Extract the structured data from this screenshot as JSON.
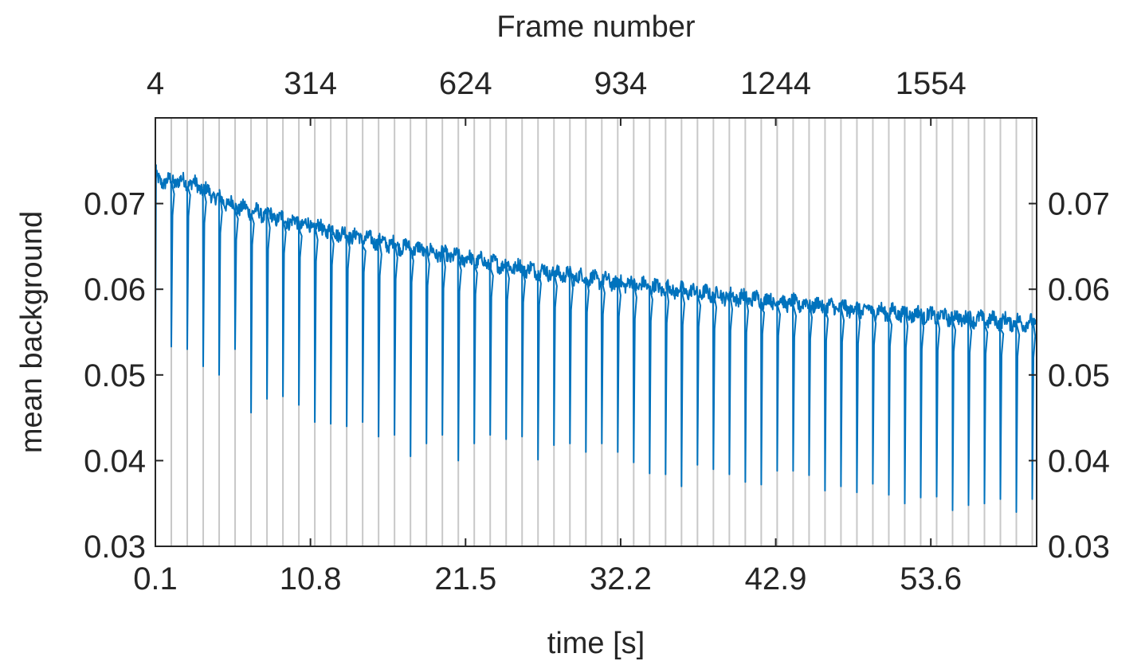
{
  "chart_data": {
    "type": "line",
    "title": "",
    "xlabel": "time [s]",
    "ylabel": "mean background",
    "top_xlabel": "Frame number",
    "xlim": [
      0.1,
      60.9
    ],
    "ylim": [
      0.03,
      0.08
    ],
    "x_ticks": [
      0.1,
      10.8,
      21.5,
      32.2,
      42.9,
      53.6
    ],
    "x_tick_labels": [
      "0.1",
      "10.8",
      "21.5",
      "32.2",
      "42.9",
      "53.6"
    ],
    "top_x_ticks": [
      0.1,
      10.8,
      21.5,
      32.2,
      42.9,
      53.6
    ],
    "top_x_tick_labels": [
      "4",
      "314",
      "624",
      "934",
      "1244",
      "1554"
    ],
    "y_ticks": [
      0.03,
      0.04,
      0.05,
      0.06,
      0.07
    ],
    "y_tick_labels": [
      "0.03",
      "0.04",
      "0.05",
      "0.06",
      "0.07"
    ],
    "right_y_tick_labels": [
      "0.03",
      "0.04",
      "0.05",
      "0.06",
      "0.07"
    ],
    "vertical_grid_x": [
      1.2,
      2.3,
      3.4,
      4.5,
      5.6,
      6.7,
      7.8,
      8.9,
      10.0,
      11.1,
      12.2,
      13.3,
      14.4,
      15.5,
      16.6,
      17.7,
      18.8,
      19.9,
      21.0,
      22.1,
      23.2,
      24.3,
      25.4,
      26.5,
      27.6,
      28.7,
      29.8,
      30.9,
      32.0,
      33.1,
      34.2,
      35.3,
      36.4,
      37.5,
      38.6,
      39.7,
      40.8,
      41.9,
      43.0,
      44.1,
      45.2,
      46.3,
      47.4,
      48.5,
      49.6,
      50.7,
      51.8,
      52.9,
      54.0,
      55.1,
      56.2,
      57.3,
      58.4,
      59.5,
      60.6
    ],
    "grid": "vertical lines only",
    "series": [
      {
        "color": "#0072BD",
        "baseline_start": 0.0725,
        "baseline_end": 0.056,
        "dip_x": [
          1.2,
          2.3,
          3.4,
          4.5,
          5.6,
          6.7,
          7.8,
          8.9,
          10.0,
          11.1,
          12.2,
          13.3,
          14.4,
          15.5,
          16.6,
          17.7,
          18.8,
          19.9,
          21.0,
          22.1,
          23.2,
          24.3,
          25.4,
          26.5,
          27.6,
          28.7,
          29.8,
          30.9,
          32.0,
          33.1,
          34.2,
          35.3,
          36.4,
          37.5,
          38.6,
          39.7,
          40.8,
          41.9,
          43.0,
          44.1,
          45.2,
          46.3,
          47.4,
          48.5,
          49.6,
          50.7,
          51.8,
          52.9,
          54.0,
          55.1,
          56.2,
          57.3,
          58.4,
          59.5,
          60.6
        ],
        "dip_y": [
          0.0533,
          0.053,
          0.051,
          0.05,
          0.053,
          0.0456,
          0.0472,
          0.0475,
          0.0465,
          0.0445,
          0.0443,
          0.044,
          0.0445,
          0.0428,
          0.043,
          0.0405,
          0.042,
          0.043,
          0.04,
          0.042,
          0.043,
          0.0425,
          0.0428,
          0.0401,
          0.0418,
          0.042,
          0.041,
          0.042,
          0.041,
          0.0398,
          0.0385,
          0.0384,
          0.037,
          0.0395,
          0.039,
          0.0384,
          0.0375,
          0.0372,
          0.0388,
          0.0388,
          0.0383,
          0.0365,
          0.037,
          0.0363,
          0.0373,
          0.036,
          0.035,
          0.0357,
          0.0358,
          0.0342,
          0.0348,
          0.035,
          0.0355,
          0.034,
          0.0355
        ]
      }
    ]
  }
}
